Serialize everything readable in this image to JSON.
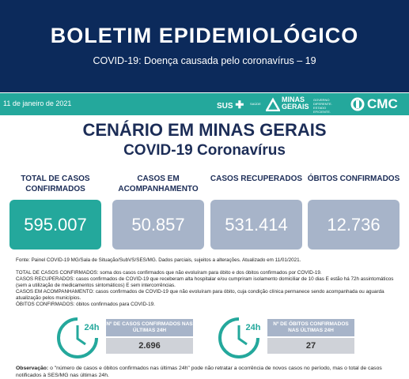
{
  "header": {
    "title": "BOLETIM EPIDEMIOLÓGICO",
    "subtitle": "COVID-19: Doença causada pelo coronavírus – 19"
  },
  "bar": {
    "date": "11 de janeiro de 2021",
    "logos": {
      "sus": "SUS",
      "saude": "SAÚDE",
      "mg": "MINAS GERAIS",
      "mg_tagline": "GOVERNO DIFERENTE. ESTADO EFICIENTE.",
      "cmc": "CMC"
    }
  },
  "scenario": {
    "title": "CENÁRIO EM MINAS GERAIS",
    "subtitle": "COVID-19 Coronavírus"
  },
  "cards": [
    {
      "label": "TOTAL DE CASOS CONFIRMADOS",
      "value": "595.007"
    },
    {
      "label": "CASOS EM ACOMPANHAMENTO",
      "value": "50.857"
    },
    {
      "label": "CASOS RECUPERADOS",
      "value": "531.414"
    },
    {
      "label": "ÓBITOS CONFIRMADOS",
      "value": "12.736"
    }
  ],
  "source": "Fonte: Painel COVID-19 MG/Sala de Situação/SubVS/SES/MG. Dados parciais, sujeitos a alterações. Atualizado em 11/01/2021.",
  "definitions": [
    "TOTAL DE CASOS CONFIRMADOS: soma dos casos confirmados que não evoluíram para óbito e dos óbitos confirmados por COVID-19.",
    "CASOS RECUPERADOS: casos confirmados de COVID-19 que receberam alta hospitalar e/ou cumpriram isolamento domiciliar de 10 dias E estão há 72h assintomáticos (sem a utilização de medicamentos sintomáticos) E sem intercorrências.",
    "CASOS EM ACOMPANHAMENTO: casos confirmados de COVID-19 que não evoluíram para óbito, cuja condição clínica permanece sendo acompanhada ou aguarda atualização pelos municípios.",
    "ÓBITOS CONFIRMADOS: óbitos confirmados para COVID-19."
  ],
  "last24": [
    {
      "icon": "24h",
      "label": "Nº DE CASOS CONFIRMADOS NAS ÚLTIMAS 24H",
      "value": "2.696"
    },
    {
      "icon": "24h",
      "label": "Nº DE ÓBITOS CONFIRMADOS NAS ÚLTIMAS 24H",
      "value": "27"
    }
  ],
  "note": {
    "lead": "Observação:",
    "text": "o \"número de casos e óbitos confirmados nas últimas 24h\" pode não retratar a ocorrência de novos casos no período, mas o total de casos notificados à SES/MG nas últimas 24h."
  }
}
